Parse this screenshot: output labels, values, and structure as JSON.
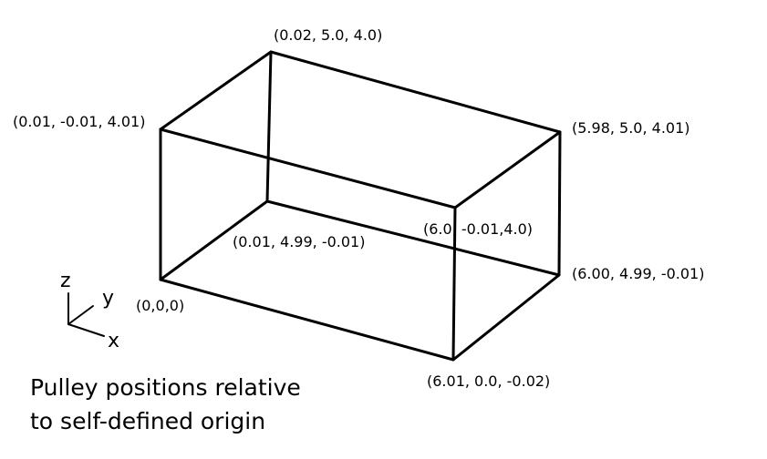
{
  "vertices": {
    "origin": "(0,0,0)",
    "x_end": "(6.01, 0.0, -0.02)",
    "xy_end": "(6.00, 4.99, -0.01)",
    "y_end": "(0.01, 4.99, -0.01)",
    "z_top": "(0.01, -0.01, 4.01)",
    "xz_top": "(6.0, -0.01,4.0)",
    "xyz_top": "(5.98, 5.0, 4.01)",
    "yz_top": "(0.02, 5.0, 4.0)"
  },
  "axes": {
    "x": "x",
    "y": "y",
    "z": "z"
  },
  "caption": {
    "line1": "Pulley positions relative",
    "line2": "to self-defined origin"
  },
  "colors": {
    "line": "#000000",
    "background": "#ffffff"
  }
}
